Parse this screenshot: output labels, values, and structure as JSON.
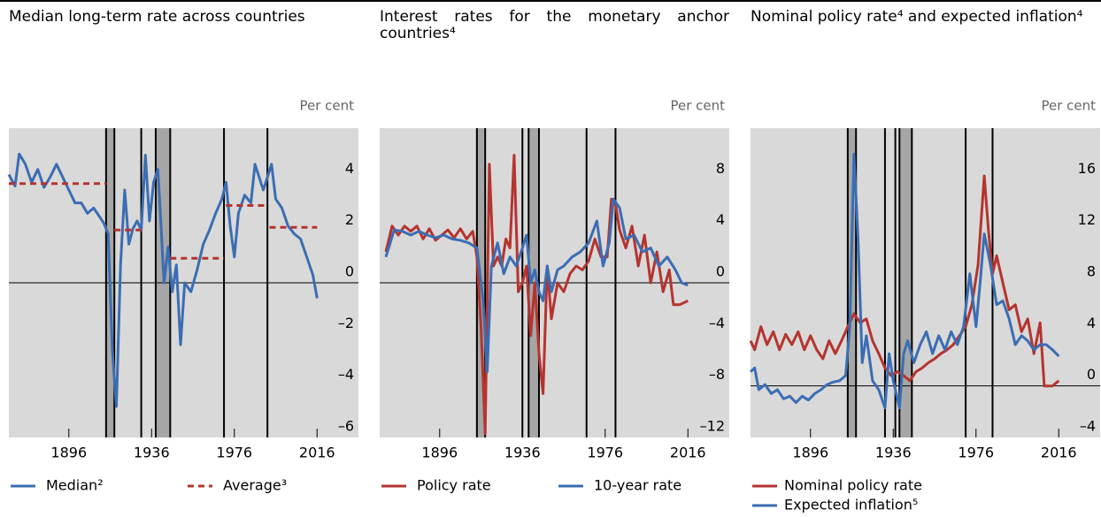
{
  "chart_data": [
    {
      "type": "line",
      "title": "Median long-term rate across countries",
      "ylabel": "Per cent",
      "xlim": [
        1867,
        2036
      ],
      "xticks": [
        1896,
        1936,
        1976,
        2016
      ],
      "ylim": [
        -6,
        6
      ],
      "yticks": [
        {
          "value": -6,
          "label": "–6"
        },
        {
          "value": -4,
          "label": "–4"
        },
        {
          "value": -2,
          "label": "–2"
        },
        0,
        2,
        4
      ],
      "background": "#d9d9d9",
      "zero_line": true,
      "legend_layout": "row",
      "shaded_periods": [
        [
          1914,
          1918
        ],
        [
          1938,
          1945
        ]
      ],
      "event_lines": [
        1931,
        1971,
        1992
      ],
      "series": [
        {
          "name": "Median²",
          "color": "#3b6db3",
          "style": "solid",
          "x": [
            1867,
            1870,
            1872,
            1875,
            1878,
            1881,
            1884,
            1887,
            1890,
            1893,
            1896,
            1899,
            1902,
            1905,
            1908,
            1911,
            1913,
            1915,
            1917,
            1919,
            1921,
            1923,
            1925,
            1927,
            1929,
            1931,
            1933,
            1935,
            1937,
            1939,
            1940,
            1942,
            1944,
            1946,
            1948,
            1950,
            1952,
            1955,
            1958,
            1961,
            1964,
            1967,
            1970,
            1972,
            1974,
            1976,
            1978,
            1981,
            1984,
            1986,
            1988,
            1990,
            1992,
            1994,
            1996,
            1999,
            2002,
            2005,
            2008,
            2011,
            2014,
            2016
          ],
          "values": [
            4.2,
            3.75,
            5.0,
            4.6,
            3.9,
            4.4,
            3.7,
            4.1,
            4.6,
            4.1,
            3.6,
            3.1,
            3.1,
            2.7,
            2.9,
            2.55,
            2.3,
            1.9,
            -2.6,
            -4.8,
            0.7,
            3.6,
            1.5,
            2.1,
            2.4,
            2.05,
            4.95,
            2.4,
            3.9,
            4.4,
            3.1,
            0.0,
            1.4,
            -0.35,
            0.7,
            -2.4,
            0.0,
            -0.35,
            0.5,
            1.5,
            2.05,
            2.7,
            3.25,
            3.9,
            2.2,
            1.0,
            2.7,
            3.4,
            3.1,
            4.6,
            4.1,
            3.6,
            4.1,
            4.6,
            3.25,
            2.9,
            2.2,
            1.9,
            1.7,
            1.0,
            0.3,
            -0.6
          ]
        },
        {
          "name": "Average³",
          "color": "#b5342f",
          "style": "dashed",
          "x": [
            1867,
            1914,
            1916,
            1918,
            1931,
            1935,
            1945,
            1971,
            1971.5,
            1972,
            1992,
            1992.5,
            1993,
            2016
          ],
          "values": [
            3.85,
            3.85,
            null,
            2.05,
            2.05,
            null,
            0.95,
            0.95,
            null,
            3.0,
            3.0,
            null,
            2.15,
            2.15
          ]
        }
      ]
    },
    {
      "type": "line",
      "title": "Interest rates for the monetary anchor countries⁴",
      "ylabel": "Per cent",
      "xlim": [
        1867,
        2036
      ],
      "xticks": [
        1896,
        1936,
        1976,
        2016
      ],
      "ylim": [
        -12,
        12
      ],
      "yticks": [
        {
          "value": -12,
          "label": "–12"
        },
        {
          "value": -8,
          "label": "–8"
        },
        {
          "value": -4,
          "label": "–4"
        },
        0,
        4,
        8
      ],
      "background": "#d9d9d9",
      "zero_line": true,
      "legend_layout": "row",
      "shaded_periods": [
        [
          1914,
          1918
        ],
        [
          1939,
          1944
        ]
      ],
      "event_lines": [
        1936,
        1967,
        1981
      ],
      "series": [
        {
          "name": "Policy rate",
          "color": "#b5342f",
          "style": "solid",
          "x": [
            1870,
            1873,
            1876,
            1879,
            1882,
            1885,
            1888,
            1891,
            1894,
            1897,
            1900,
            1903,
            1906,
            1909,
            1912,
            1914,
            1916,
            1918,
            1920,
            1922,
            1924,
            1926,
            1928,
            1930,
            1932,
            1934,
            1936,
            1938,
            1940,
            1942,
            1944,
            1946,
            1948,
            1950,
            1953,
            1956,
            1959,
            1962,
            1965,
            1968,
            1971,
            1974,
            1977,
            1979,
            1981,
            1983,
            1986,
            1989,
            1992,
            1995,
            1998,
            2001,
            2004,
            2007,
            2009,
            2012,
            2016
          ],
          "values": [
            2.4,
            4.4,
            3.7,
            4.4,
            4.0,
            4.4,
            3.4,
            4.2,
            3.3,
            3.7,
            4.1,
            3.5,
            4.2,
            3.4,
            4.0,
            2.0,
            -3.4,
            -11.7,
            9.2,
            1.3,
            2.0,
            1.3,
            3.4,
            2.7,
            9.9,
            -0.7,
            0.0,
            1.3,
            -4.1,
            0.0,
            -5.5,
            -8.6,
            1.3,
            -2.8,
            0.0,
            -0.7,
            0.7,
            1.3,
            1.0,
            1.7,
            3.4,
            2.0,
            2.0,
            6.5,
            6.1,
            4.1,
            2.7,
            4.4,
            1.3,
            3.7,
            0.0,
            2.4,
            -0.7,
            1.0,
            -1.7,
            -1.7,
            -1.4
          ]
        },
        {
          "name": "10-year rate",
          "color": "#3b6db3",
          "style": "solid",
          "x": [
            1870,
            1874,
            1878,
            1882,
            1886,
            1890,
            1894,
            1898,
            1902,
            1906,
            1910,
            1914,
            1917,
            1919,
            1921,
            1924,
            1927,
            1930,
            1933,
            1936,
            1938,
            1940,
            1942,
            1944,
            1946,
            1948,
            1950,
            1953,
            1956,
            1960,
            1964,
            1968,
            1972,
            1975,
            1978,
            1980,
            1983,
            1986,
            1990,
            1994,
            1998,
            2002,
            2006,
            2010,
            2013,
            2016
          ],
          "values": [
            2.0,
            4.1,
            4.0,
            3.7,
            4.0,
            3.7,
            3.5,
            3.7,
            3.4,
            3.3,
            3.1,
            2.7,
            -1.4,
            -6.9,
            1.3,
            3.1,
            0.7,
            2.0,
            1.3,
            2.7,
            3.7,
            0.0,
            1.0,
            -0.7,
            -1.4,
            1.3,
            -0.7,
            1.0,
            1.3,
            2.0,
            2.4,
            3.1,
            4.8,
            1.3,
            3.1,
            6.5,
            5.8,
            3.4,
            3.7,
            2.4,
            2.7,
            1.3,
            2.0,
            1.0,
            0.0,
            -0.2
          ]
        }
      ]
    },
    {
      "type": "line",
      "title": "Nominal policy rate⁴ and expected inflation⁴",
      "ylabel": "Per cent",
      "xlim": [
        1867,
        2036
      ],
      "xticks": [
        1896,
        1936,
        1976,
        2016
      ],
      "ylim": [
        -4,
        20
      ],
      "yticks": [
        {
          "value": -4,
          "label": "–4"
        },
        0,
        4,
        8,
        12,
        16
      ],
      "background": "#d9d9d9",
      "zero_line": true,
      "legend_layout": "stacked",
      "shaded_periods": [
        [
          1914,
          1918
        ],
        [
          1939,
          1945
        ]
      ],
      "event_lines": [
        1932,
        1937,
        1971,
        1984
      ],
      "series": [
        {
          "name": "Nominal policy rate",
          "color": "#b5342f",
          "style": "solid",
          "x": [
            1867,
            1869,
            1872,
            1875,
            1878,
            1881,
            1884,
            1887,
            1890,
            1893,
            1896,
            1899,
            1902,
            1905,
            1908,
            1911,
            1914,
            1917,
            1920,
            1923,
            1926,
            1929,
            1932,
            1935,
            1938,
            1941,
            1944,
            1947,
            1950,
            1953,
            1956,
            1959,
            1962,
            1965,
            1968,
            1971,
            1974,
            1977,
            1980,
            1982,
            1984,
            1986,
            1989,
            1992,
            1995,
            1998,
            2001,
            2004,
            2007,
            2009,
            2013,
            2016
          ],
          "values": [
            3.5,
            2.8,
            4.6,
            3.2,
            4.2,
            2.8,
            4.0,
            3.2,
            4.2,
            2.8,
            3.9,
            2.8,
            2.1,
            3.5,
            2.5,
            3.5,
            4.6,
            5.6,
            4.9,
            5.2,
            3.5,
            2.5,
            1.4,
            0.8,
            1.1,
            0.8,
            0.4,
            1.1,
            1.4,
            1.8,
            2.1,
            2.5,
            2.8,
            3.2,
            3.9,
            4.6,
            6.3,
            9.4,
            16.3,
            12.1,
            8.7,
            10.1,
            8.0,
            5.9,
            6.3,
            4.2,
            5.2,
            2.5,
            4.9,
            0,
            0,
            0.4
          ]
        },
        {
          "name": "Expected inflation⁵",
          "color": "#3b6db3",
          "style": "solid",
          "x": [
            1867,
            1869,
            1871,
            1874,
            1877,
            1880,
            1883,
            1886,
            1889,
            1892,
            1895,
            1898,
            1901,
            1904,
            1907,
            1910,
            1913,
            1915,
            1917,
            1919,
            1921,
            1923,
            1926,
            1929,
            1932,
            1934,
            1936,
            1939,
            1941,
            1943,
            1946,
            1949,
            1952,
            1955,
            1958,
            1961,
            1964,
            1967,
            1970,
            1973,
            1976,
            1978,
            1980,
            1983,
            1986,
            1989,
            1992,
            1995,
            1998,
            2001,
            2004,
            2007,
            2010,
            2013,
            2016
          ],
          "values": [
            1.1,
            1.4,
            -0.3,
            0.1,
            -0.6,
            -0.3,
            -1.0,
            -0.8,
            -1.3,
            -0.8,
            -1.1,
            -0.6,
            -0.3,
            0.1,
            0.3,
            0.4,
            0.8,
            4.6,
            18.0,
            11.4,
            1.8,
            3.9,
            0.4,
            -0.3,
            -1.7,
            2.5,
            0.4,
            -1.7,
            2.5,
            3.5,
            1.8,
            3.2,
            4.2,
            2.5,
            3.9,
            2.8,
            4.2,
            3.2,
            4.6,
            8.7,
            4.6,
            8.0,
            11.8,
            9.4,
            6.3,
            6.6,
            5.2,
            3.2,
            3.9,
            3.5,
            2.8,
            3.2,
            3.2,
            2.8,
            2.3
          ]
        }
      ]
    }
  ]
}
